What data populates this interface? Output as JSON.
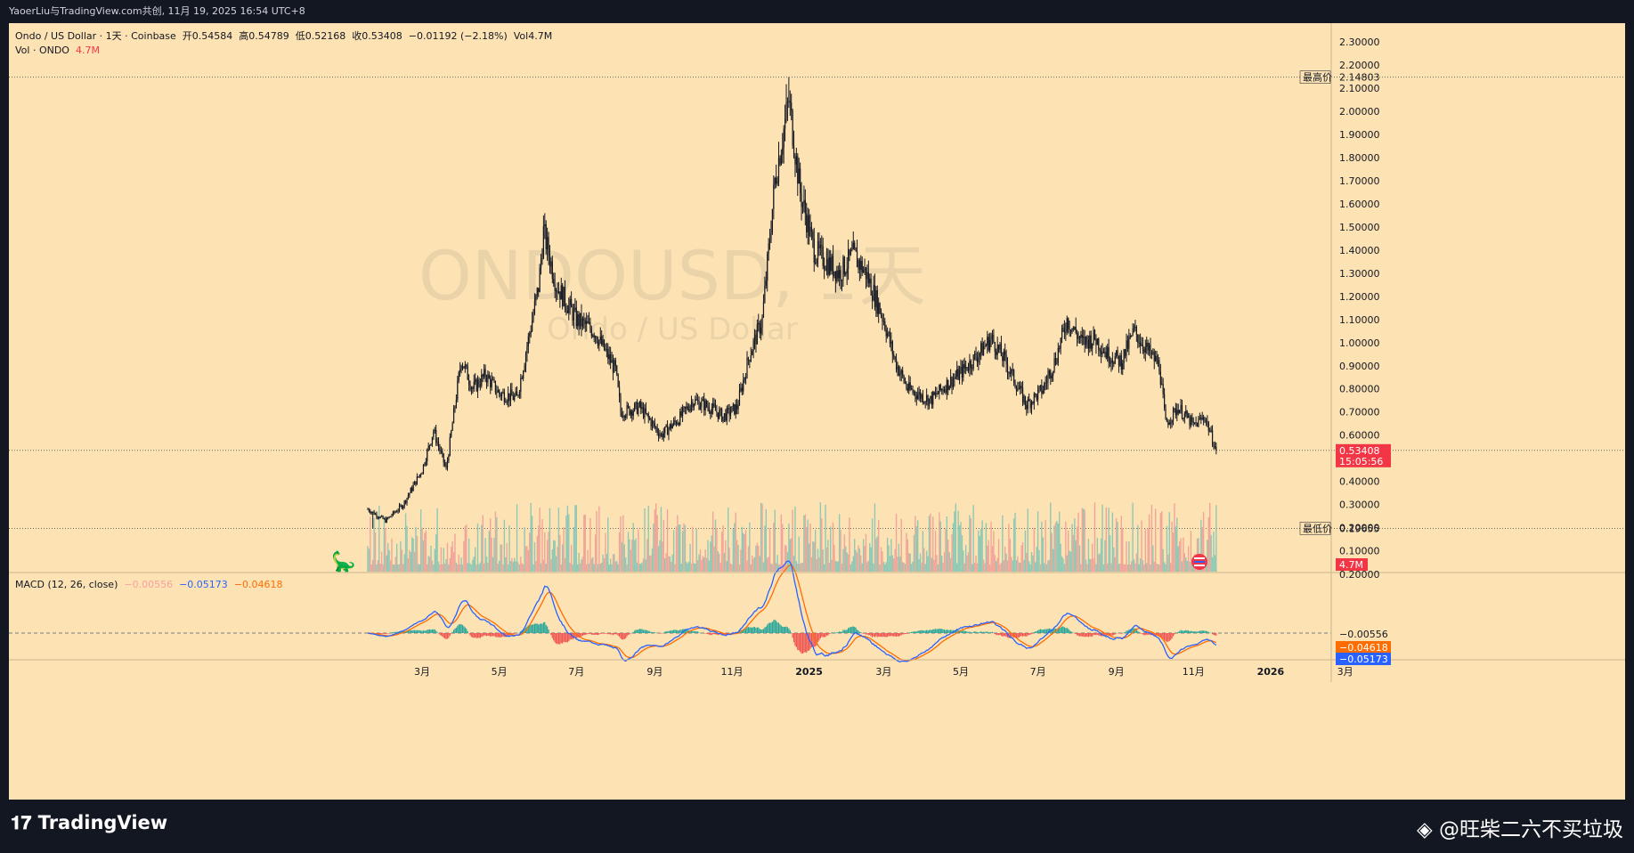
{
  "topbar": {
    "text": "YaoerLiu与TradingView.com共创, 11月 19, 2025 16:54 UTC+8"
  },
  "legend": {
    "symbol": "Ondo / US Dollar · 1天 · Coinbase",
    "open_label": "开",
    "open": "0.54584",
    "high_label": "高",
    "high": "0.54789",
    "low_label": "低",
    "low": "0.52168",
    "close_label": "收",
    "close": "0.53408",
    "change": "−0.01192 (−2.18%)",
    "vol_label": "Vol",
    "vol": "4.7M",
    "vol_series": "Vol · ONDO",
    "vol_value": "4.7M",
    "macd_name": "MACD (12, 26, close)",
    "macd_hist": "−0.00556",
    "macd_line": "−0.05173",
    "macd_signal": "−0.04618"
  },
  "watermark": {
    "symbol": "ONDOUSD, 1天",
    "name": "Ondo / US Dollar"
  },
  "price_axis": {
    "ticks": [
      "0.10000",
      "0.20000",
      "0.30000",
      "0.40000",
      "0.50000",
      "0.60000",
      "0.70000",
      "0.80000",
      "0.90000",
      "1.00000",
      "1.10000",
      "1.20000",
      "1.30000",
      "1.40000",
      "1.50000",
      "1.60000",
      "1.70000",
      "1.80000",
      "1.90000",
      "2.00000",
      "2.10000",
      "2.20000",
      "2.30000"
    ],
    "high_badge": {
      "label": "最高价",
      "value": "2.14803"
    },
    "low_badge": {
      "label": "最低价",
      "value": "0.19655"
    },
    "last_badge": {
      "price": "0.53408",
      "countdown": "15:05:56"
    },
    "vol_badge": "4.7M"
  },
  "macd_axis": {
    "ticks": [
      "0.20000"
    ],
    "hist_badge": "−0.00556",
    "signal_badge": "−0.04618",
    "macd_badge": "−0.05173"
  },
  "time_axis": {
    "labels": [
      "3月",
      "5月",
      "7月",
      "9月",
      "11月",
      "2025",
      "3月",
      "5月",
      "7月",
      "9月",
      "11月",
      "2026",
      "3月"
    ]
  },
  "brand": {
    "logo": "TradingView",
    "user_watermark": "@旺柴二六不买垃圾"
  },
  "colors": {
    "background": "#fde3b4",
    "frame": "#131722",
    "candle": "#131722",
    "vol_up": "#8fc8b4",
    "vol_down": "#f0a59a",
    "macd_line": "#2962ff",
    "signal_line": "#ff6d00",
    "hist_up": "#26a69a",
    "hist_down": "#ef5350",
    "last_price": "#f23645"
  },
  "chart_data": {
    "type": "candlestick",
    "title": "Ondo / US Dollar · 1天 · Coinbase",
    "price_range": [
      0.0,
      2.3
    ],
    "all_time_high": 2.14803,
    "all_time_low": 0.19655,
    "last_close": 0.53408,
    "price_path": [
      {
        "date": "2024-01-18",
        "close": 0.28
      },
      {
        "date": "2024-02-01",
        "close": 0.23
      },
      {
        "date": "2024-02-15",
        "close": 0.3
      },
      {
        "date": "2024-03-01",
        "close": 0.45
      },
      {
        "date": "2024-03-10",
        "close": 0.62
      },
      {
        "date": "2024-03-20",
        "close": 0.45
      },
      {
        "date": "2024-04-01",
        "close": 0.93
      },
      {
        "date": "2024-04-10",
        "close": 0.8
      },
      {
        "date": "2024-04-20",
        "close": 0.86
      },
      {
        "date": "2024-05-01",
        "close": 0.78
      },
      {
        "date": "2024-05-15",
        "close": 0.76
      },
      {
        "date": "2024-06-01",
        "close": 1.24
      },
      {
        "date": "2024-06-05",
        "close": 1.48
      },
      {
        "date": "2024-06-15",
        "close": 1.25
      },
      {
        "date": "2024-07-01",
        "close": 1.1
      },
      {
        "date": "2024-07-15",
        "close": 1.05
      },
      {
        "date": "2024-08-01",
        "close": 0.88
      },
      {
        "date": "2024-08-05",
        "close": 0.7
      },
      {
        "date": "2024-08-20",
        "close": 0.72
      },
      {
        "date": "2024-09-06",
        "close": 0.6
      },
      {
        "date": "2024-09-20",
        "close": 0.67
      },
      {
        "date": "2024-10-01",
        "close": 0.75
      },
      {
        "date": "2024-10-15",
        "close": 0.72
      },
      {
        "date": "2024-10-25",
        "close": 0.68
      },
      {
        "date": "2024-11-05",
        "close": 0.72
      },
      {
        "date": "2024-11-15",
        "close": 0.95
      },
      {
        "date": "2024-11-25",
        "close": 1.1
      },
      {
        "date": "2024-12-05",
        "close": 1.7
      },
      {
        "date": "2024-12-16",
        "close": 2.05
      },
      {
        "date": "2024-12-25",
        "close": 1.65
      },
      {
        "date": "2025-01-05",
        "close": 1.4
      },
      {
        "date": "2025-01-15",
        "close": 1.35
      },
      {
        "date": "2025-01-25",
        "close": 1.3
      },
      {
        "date": "2025-02-05",
        "close": 1.38
      },
      {
        "date": "2025-02-15",
        "close": 1.3
      },
      {
        "date": "2025-03-01",
        "close": 1.1
      },
      {
        "date": "2025-03-10",
        "close": 0.92
      },
      {
        "date": "2025-03-20",
        "close": 0.8
      },
      {
        "date": "2025-04-07",
        "close": 0.75
      },
      {
        "date": "2025-04-20",
        "close": 0.82
      },
      {
        "date": "2025-05-01",
        "close": 0.87
      },
      {
        "date": "2025-05-15",
        "close": 0.95
      },
      {
        "date": "2025-05-25",
        "close": 1.02
      },
      {
        "date": "2025-06-05",
        "close": 0.92
      },
      {
        "date": "2025-06-22",
        "close": 0.73
      },
      {
        "date": "2025-07-05",
        "close": 0.8
      },
      {
        "date": "2025-07-15",
        "close": 0.93
      },
      {
        "date": "2025-07-24",
        "close": 1.1
      },
      {
        "date": "2025-08-05",
        "close": 1.0
      },
      {
        "date": "2025-08-15",
        "close": 1.02
      },
      {
        "date": "2025-08-25",
        "close": 0.95
      },
      {
        "date": "2025-09-05",
        "close": 0.92
      },
      {
        "date": "2025-09-15",
        "close": 1.05
      },
      {
        "date": "2025-09-25",
        "close": 0.97
      },
      {
        "date": "2025-10-05",
        "close": 0.9
      },
      {
        "date": "2025-10-10",
        "close": 0.65
      },
      {
        "date": "2025-10-20",
        "close": 0.72
      },
      {
        "date": "2025-11-01",
        "close": 0.64
      },
      {
        "date": "2025-11-10",
        "close": 0.68
      },
      {
        "date": "2025-11-19",
        "close": 0.53408
      }
    ],
    "macd": {
      "params": "12, 26, close",
      "histogram": -0.00556,
      "macd": -0.05173,
      "signal": -0.04618
    }
  }
}
